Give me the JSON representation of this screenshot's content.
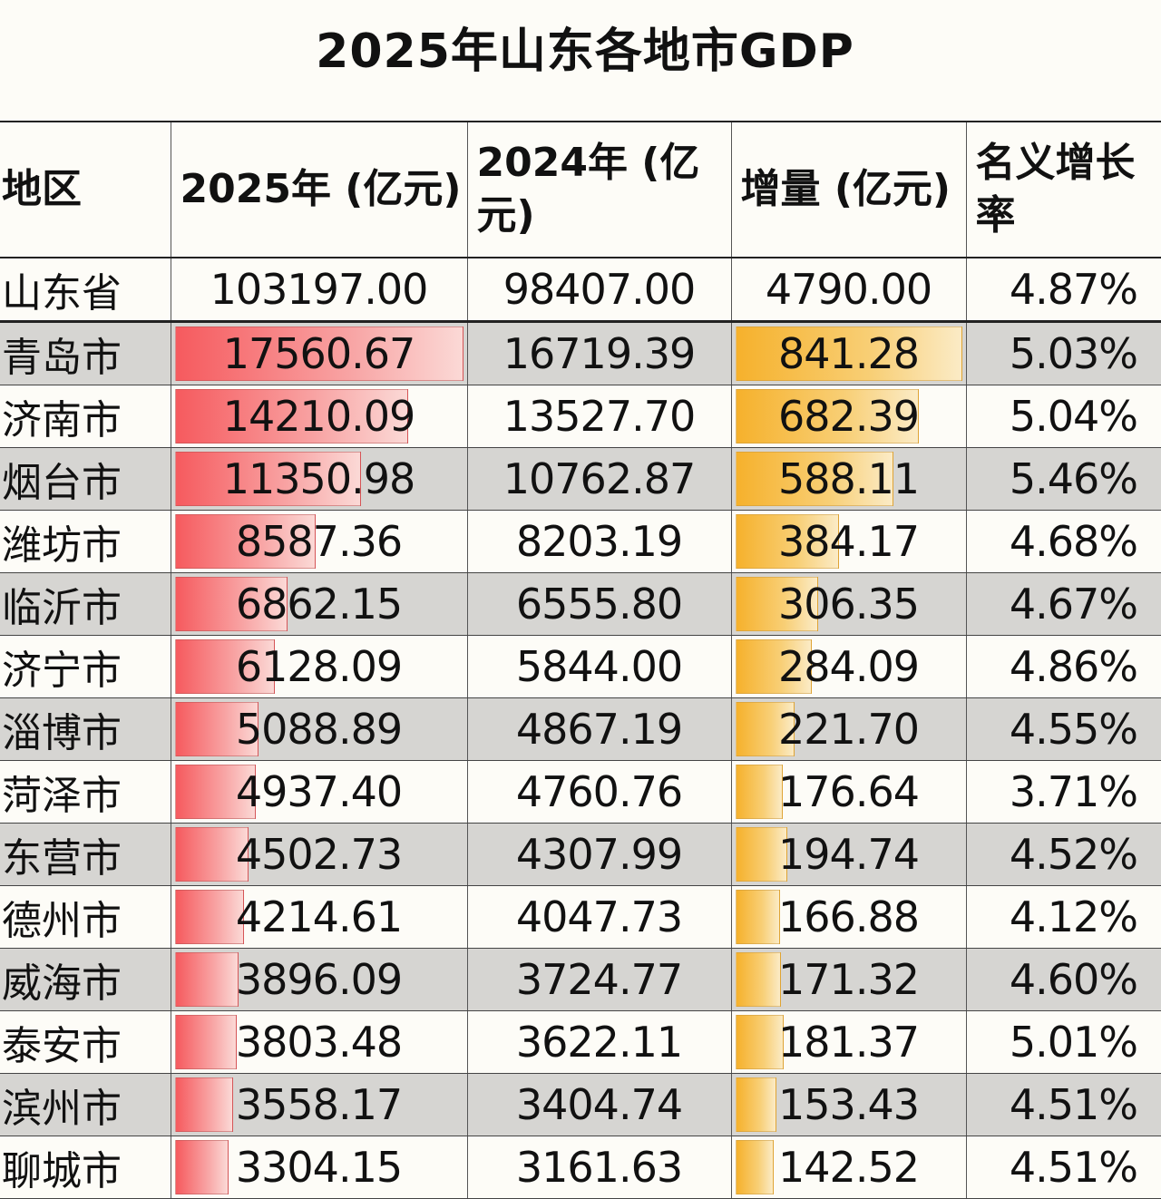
{
  "title": "2025年山东各地市GDP",
  "chart_data": {
    "type": "table",
    "title": "2025年山东各地市GDP",
    "columns": [
      "地区",
      "2025年 (亿元)",
      "2024年 (亿元)",
      "增量 (亿元)",
      "名义增长率"
    ],
    "colors": {
      "bar_2025": "#f65a5e",
      "bar_increase": "#f6b12c",
      "alt_row": "#d6d5d2"
    },
    "province": {
      "region": "山东省",
      "gdp2025": "103197.00",
      "gdp2024": "98407.00",
      "increase": "4790.00",
      "growth": "4.87%"
    },
    "rows": [
      {
        "region": "青岛市",
        "gdp2025": "17560.67",
        "gdp2024": "16719.39",
        "increase": "841.28",
        "growth": "5.03%"
      },
      {
        "region": "济南市",
        "gdp2025": "14210.09",
        "gdp2024": "13527.70",
        "increase": "682.39",
        "growth": "5.04%"
      },
      {
        "region": "烟台市",
        "gdp2025": "11350.98",
        "gdp2024": "10762.87",
        "increase": "588.11",
        "growth": "5.46%"
      },
      {
        "region": "潍坊市",
        "gdp2025": "8587.36",
        "gdp2024": "8203.19",
        "increase": "384.17",
        "growth": "4.68%"
      },
      {
        "region": "临沂市",
        "gdp2025": "6862.15",
        "gdp2024": "6555.80",
        "increase": "306.35",
        "growth": "4.67%"
      },
      {
        "region": "济宁市",
        "gdp2025": "6128.09",
        "gdp2024": "5844.00",
        "increase": "284.09",
        "growth": "4.86%"
      },
      {
        "region": "淄博市",
        "gdp2025": "5088.89",
        "gdp2024": "4867.19",
        "increase": "221.70",
        "growth": "4.55%"
      },
      {
        "region": "菏泽市",
        "gdp2025": "4937.40",
        "gdp2024": "4760.76",
        "increase": "176.64",
        "growth": "3.71%"
      },
      {
        "region": "东营市",
        "gdp2025": "4502.73",
        "gdp2024": "4307.99",
        "increase": "194.74",
        "growth": "4.52%"
      },
      {
        "region": "德州市",
        "gdp2025": "4214.61",
        "gdp2024": "4047.73",
        "increase": "166.88",
        "growth": "4.12%"
      },
      {
        "region": "威海市",
        "gdp2025": "3896.09",
        "gdp2024": "3724.77",
        "increase": "171.32",
        "growth": "4.60%"
      },
      {
        "region": "泰安市",
        "gdp2025": "3803.48",
        "gdp2024": "3622.11",
        "increase": "181.37",
        "growth": "5.01%"
      },
      {
        "region": "滨州市",
        "gdp2025": "3558.17",
        "gdp2024": "3404.74",
        "increase": "153.43",
        "growth": "4.51%"
      },
      {
        "region": "聊城市",
        "gdp2025": "3304.15",
        "gdp2024": "3161.63",
        "increase": "142.52",
        "growth": "4.51%"
      }
    ]
  }
}
